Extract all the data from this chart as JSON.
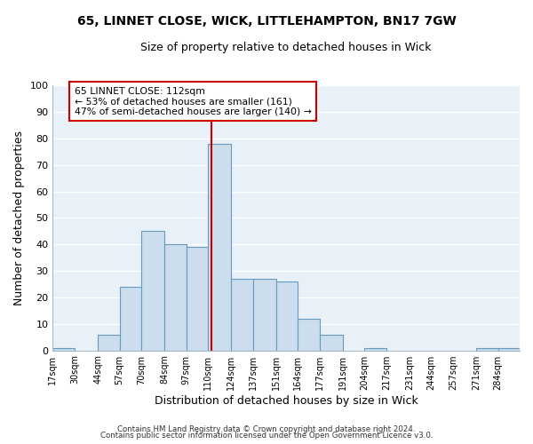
{
  "title": "65, LINNET CLOSE, WICK, LITTLEHAMPTON, BN17 7GW",
  "subtitle": "Size of property relative to detached houses in Wick",
  "xlabel": "Distribution of detached houses by size in Wick",
  "ylabel": "Number of detached properties",
  "bar_color": "#ccdded",
  "bar_edge_color": "#6699bb",
  "plot_bg_color": "#e8f0f8",
  "fig_bg_color": "#ffffff",
  "grid_color": "#ffffff",
  "bin_edges": [
    17,
    30,
    44,
    57,
    70,
    84,
    97,
    110,
    124,
    137,
    151,
    164,
    177,
    191,
    204,
    217,
    231,
    244,
    257,
    271,
    284,
    297
  ],
  "bin_labels": [
    "17sqm",
    "30sqm",
    "44sqm",
    "57sqm",
    "70sqm",
    "84sqm",
    "97sqm",
    "110sqm",
    "124sqm",
    "137sqm",
    "151sqm",
    "164sqm",
    "177sqm",
    "191sqm",
    "204sqm",
    "217sqm",
    "231sqm",
    "244sqm",
    "257sqm",
    "271sqm",
    "284sqm"
  ],
  "counts": [
    1,
    0,
    6,
    24,
    45,
    40,
    39,
    78,
    27,
    27,
    26,
    12,
    6,
    0,
    1,
    0,
    0,
    0,
    0,
    1,
    1
  ],
  "property_line_x": 112,
  "property_line_color": "#cc0000",
  "ann_line1": "65 LINNET CLOSE: 112sqm",
  "ann_line2": "← 53% of detached houses are smaller (161)",
  "ann_line3": "47% of semi-detached houses are larger (140) →",
  "annotation_box_color": "#ffffff",
  "annotation_box_edge": "#cc0000",
  "ylim": [
    0,
    100
  ],
  "yticks": [
    0,
    10,
    20,
    30,
    40,
    50,
    60,
    70,
    80,
    90,
    100
  ],
  "footer1": "Contains HM Land Registry data © Crown copyright and database right 2024.",
  "footer2": "Contains public sector information licensed under the Open Government Licence v3.0."
}
